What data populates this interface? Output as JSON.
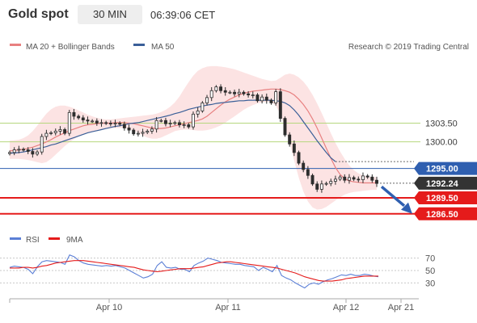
{
  "header": {
    "title": "Gold spot",
    "timeframe": "30 MIN",
    "timestamp": "06:39:06 CET"
  },
  "legend": {
    "ma20_bb": "MA 20 + Bollinger Bands",
    "ma50": "MA 50",
    "source": "Research © 2019 Trading Central",
    "rsi": "RSI",
    "ma9": "9MA"
  },
  "colors": {
    "candle": "#2d2d2d",
    "ma20": "#e88080",
    "bollinger_fill": "#fbd9d9",
    "ma50": "#3a5f98",
    "green_level": "#b6d77e",
    "blue_level": "#2f5fb0",
    "red_level": "#e51b1b",
    "current_price": "#333333",
    "arrow": "#2f5fb0",
    "rsi_line": "#5b7fd6",
    "rsi_ma": "#e51b1b"
  },
  "chart_data": [
    {
      "type": "line",
      "subtype": "candlestick",
      "title": "Gold spot",
      "x_ticks": [
        "Apr 10",
        "Apr 11",
        "Apr 12",
        "Apr 21"
      ],
      "y_ticks": [
        1286.5,
        1289.5,
        1292.24,
        1295.0,
        1300.0,
        1303.5
      ],
      "ylim": [
        1284.5,
        1316
      ],
      "levels": [
        {
          "value": 1303.5,
          "label": "1303.50",
          "style": "green"
        },
        {
          "value": 1300.0,
          "label": "1300.00",
          "style": "green"
        },
        {
          "value": 1295.0,
          "label": "1295.00",
          "style": "blue"
        },
        {
          "value": 1292.24,
          "label": "1292.24",
          "style": "current"
        },
        {
          "value": 1289.5,
          "label": "1289.50",
          "style": "red"
        },
        {
          "value": 1286.5,
          "label": "1286.50",
          "style": "red"
        }
      ],
      "series": [
        {
          "name": "MA 20 + Bollinger Bands",
          "role": "ma20",
          "values": [
            1298.3,
            1298.4,
            1298.5,
            1298.6,
            1298.8,
            1299.0,
            1299.3,
            1299.6,
            1300.0,
            1300.4,
            1300.9,
            1301.3,
            1301.7,
            1302.1,
            1302.4,
            1302.7,
            1303.0,
            1303.2,
            1303.3,
            1303.4,
            1303.5,
            1303.5,
            1303.5,
            1303.6,
            1303.6,
            1303.6,
            1303.5,
            1303.4,
            1303.2,
            1303.0,
            1302.8,
            1302.6,
            1302.5,
            1302.5,
            1302.6,
            1302.8,
            1303.0,
            1303.2,
            1303.4,
            1303.6,
            1303.8,
            1304.0,
            1304.3,
            1304.8,
            1305.5,
            1306.2,
            1306.9,
            1307.5,
            1308.0,
            1308.4,
            1308.8,
            1309.1,
            1309.3,
            1309.5,
            1309.6,
            1309.7,
            1309.8,
            1309.9,
            1309.9,
            1309.8,
            1309.6,
            1309.3,
            1308.8,
            1308.0,
            1307.0,
            1305.8,
            1304.3,
            1302.6,
            1300.7,
            1298.8,
            1296.9,
            1295.2,
            1293.9,
            1293.1,
            1292.7,
            1292.5,
            1292.4,
            1292.3,
            1292.3,
            1292.3,
            1292.3
          ]
        },
        {
          "name": "Bollinger Upper",
          "role": "bb_upper",
          "values": [
            1300.2,
            1300.3,
            1300.4,
            1300.7,
            1301.2,
            1302.0,
            1303.0,
            1304.2,
            1305.3,
            1306.1,
            1306.6,
            1306.8,
            1306.8,
            1306.6,
            1306.3,
            1305.9,
            1305.5,
            1305.1,
            1304.8,
            1304.5,
            1304.3,
            1304.2,
            1304.2,
            1304.3,
            1304.4,
            1304.5,
            1304.6,
            1304.7,
            1304.8,
            1304.9,
            1305.0,
            1305.1,
            1305.3,
            1305.6,
            1306.0,
            1306.6,
            1307.4,
            1308.5,
            1309.9,
            1311.2,
            1312.4,
            1313.3,
            1313.8,
            1314.1,
            1314.2,
            1314.2,
            1314.1,
            1314.0,
            1313.8,
            1313.6,
            1313.3,
            1313.0,
            1312.7,
            1312.4,
            1312.1,
            1311.8,
            1311.6,
            1311.4,
            1311.5,
            1312.0,
            1312.6,
            1312.8,
            1312.6,
            1312.1,
            1311.3,
            1310.2,
            1308.8,
            1307.2,
            1305.4,
            1303.5,
            1301.6,
            1299.8,
            1298.2,
            1296.8,
            1295.6,
            1294.7,
            1294.1,
            1293.7,
            1293.5,
            1293.4,
            1293.4
          ]
        },
        {
          "name": "Bollinger Lower",
          "role": "bb_lower",
          "values": [
            1296.8,
            1296.8,
            1296.8,
            1296.7,
            1296.6,
            1296.4,
            1296.2,
            1296.0,
            1296.2,
            1296.8,
            1297.6,
            1298.4,
            1299.2,
            1299.9,
            1300.5,
            1301.0,
            1301.4,
            1301.7,
            1301.9,
            1302.1,
            1302.3,
            1302.4,
            1302.5,
            1302.6,
            1302.6,
            1302.6,
            1302.4,
            1302.1,
            1301.7,
            1301.2,
            1300.8,
            1300.6,
            1300.6,
            1300.8,
            1301.2,
            1301.6,
            1302.0,
            1302.2,
            1302.3,
            1302.3,
            1302.2,
            1302.1,
            1302.1,
            1302.2,
            1302.4,
            1302.7,
            1303.1,
            1303.6,
            1304.2,
            1304.8,
            1305.4,
            1306.0,
            1306.5,
            1306.9,
            1307.2,
            1307.4,
            1307.5,
            1307.5,
            1306.8,
            1305.2,
            1302.8,
            1299.8,
            1296.5,
            1293.3,
            1290.7,
            1288.8,
            1287.7,
            1287.3,
            1287.4,
            1287.8,
            1288.4,
            1289.0,
            1289.6,
            1290.1,
            1290.4,
            1290.6,
            1290.7,
            1290.8,
            1290.9,
            1291.0,
            1291.0
          ]
        },
        {
          "name": "MA 50",
          "role": "ma50",
          "values": [
            1297.9,
            1297.9,
            1298.0,
            1298.1,
            1298.3,
            1298.5,
            1298.7,
            1298.9,
            1299.1,
            1299.4,
            1299.6,
            1299.9,
            1300.2,
            1300.5,
            1300.8,
            1301.1,
            1301.4,
            1301.7,
            1301.9,
            1302.1,
            1302.3,
            1302.5,
            1302.7,
            1302.9,
            1303.0,
            1303.2,
            1303.4,
            1303.5,
            1303.6,
            1303.8,
            1304.0,
            1304.2,
            1304.4,
            1304.6,
            1304.8,
            1305.0,
            1305.3,
            1305.5,
            1305.8,
            1306.1,
            1306.3,
            1306.5,
            1306.7,
            1306.9,
            1307.0,
            1307.2,
            1307.3,
            1307.4,
            1307.5,
            1307.6,
            1307.7,
            1307.7,
            1307.8,
            1307.8,
            1307.8,
            1307.8,
            1307.8,
            1307.8,
            1307.7,
            1307.6,
            1307.3,
            1306.8,
            1306.0,
            1305.0,
            1303.8,
            1302.6,
            1301.4,
            1300.2,
            1299.1,
            1298.0,
            1297.0,
            1296.3
          ]
        },
        {
          "name": "Close",
          "role": "close",
          "values": [
            1298.0,
            1298.5,
            1298.6,
            1298.5,
            1298.2,
            1297.7,
            1298.1,
            1301.0,
            1301.6,
            1301.7,
            1302.0,
            1302.3,
            1301.6,
            1305.5,
            1304.8,
            1304.5,
            1304.1,
            1303.9,
            1303.9,
            1303.5,
            1303.6,
            1303.5,
            1303.4,
            1303.5,
            1303.3,
            1302.6,
            1302.2,
            1301.5,
            1301.6,
            1301.8,
            1302.0,
            1302.4,
            1304.0,
            1304.0,
            1303.4,
            1303.5,
            1303.6,
            1303.2,
            1303.2,
            1302.8,
            1305.2,
            1305.8,
            1307.3,
            1308.3,
            1309.6,
            1310.3,
            1309.6,
            1309.3,
            1309.3,
            1309.0,
            1309.3,
            1309.0,
            1308.8,
            1308.8,
            1307.7,
            1308.4,
            1307.8,
            1307.3,
            1309.4,
            1304.4,
            1301.3,
            1299.6,
            1298.0,
            1296.0,
            1294.8,
            1293.7,
            1292.1,
            1291.1,
            1292.1,
            1292.2,
            1292.6,
            1293.0,
            1293.4,
            1292.8,
            1293.3,
            1293.0,
            1292.9,
            1293.6,
            1293.4,
            1292.8,
            1292.2
          ]
        }
      ]
    },
    {
      "type": "line",
      "title": "RSI",
      "x_ticks": [
        "Apr 10",
        "Apr 11",
        "Apr 12",
        "Apr 21"
      ],
      "y_ticks": [
        30,
        50,
        70
      ],
      "ylim": [
        15,
        85
      ],
      "series": [
        {
          "name": "RSI",
          "values": [
            55,
            57,
            56,
            55,
            52,
            45,
            56,
            64,
            66,
            65,
            64,
            63,
            60,
            75,
            72,
            66,
            62,
            60,
            59,
            58,
            57,
            58,
            57,
            58,
            56,
            54,
            50,
            46,
            42,
            38,
            40,
            44,
            58,
            64,
            55,
            54,
            55,
            52,
            52,
            48,
            58,
            62,
            65,
            70,
            68,
            66,
            63,
            62,
            61,
            60,
            60,
            58,
            57,
            56,
            50,
            55,
            52,
            48,
            58,
            42,
            38,
            35,
            30,
            26,
            22,
            28,
            30,
            28,
            32,
            35,
            37,
            40,
            43,
            42,
            44,
            42,
            42,
            44,
            43,
            41,
            40
          ]
        },
        {
          "name": "9MA",
          "values": [
            54,
            54,
            54,
            55,
            55,
            54,
            55,
            57,
            58,
            60,
            62,
            63,
            64,
            65,
            66,
            66,
            66,
            65,
            64,
            63,
            62,
            61,
            60,
            59,
            58,
            57,
            56,
            55,
            53,
            51,
            50,
            49,
            48,
            49,
            50,
            51,
            52,
            53,
            53,
            53,
            54,
            55,
            56,
            58,
            60,
            62,
            63,
            64,
            64,
            63,
            62,
            61,
            60,
            59,
            58,
            57,
            56,
            55,
            54,
            52,
            50,
            48,
            46,
            43,
            40,
            38,
            36,
            34,
            33,
            33,
            33,
            34,
            35,
            37,
            38,
            39,
            40,
            41,
            41,
            41,
            41
          ]
        }
      ]
    }
  ]
}
